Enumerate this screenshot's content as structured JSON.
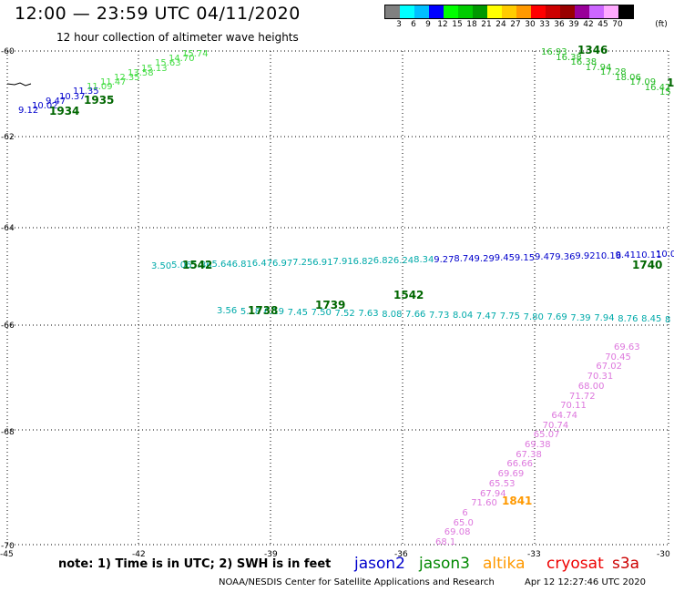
{
  "header": {
    "title": "12:00 — 23:59 UTC 04/11/2020",
    "subtitle": "12 hour collection of altimeter wave heights"
  },
  "legend": {
    "colors": [
      "#808080",
      "#00ffff",
      "#00bfff",
      "#0000ff",
      "#00ff00",
      "#00cc00",
      "#009900",
      "#ffff00",
      "#ffcc00",
      "#ff9900",
      "#ff0000",
      "#cc0000",
      "#990000",
      "#990099",
      "#cc66ff",
      "#ffaaff",
      "#000000"
    ],
    "labels": [
      "3",
      "6",
      "9",
      "12",
      "15",
      "18",
      "21",
      "24",
      "27",
      "30",
      "33",
      "36",
      "39",
      "42",
      "45",
      "70"
    ],
    "unit": "(ft)"
  },
  "axes": {
    "lat_labels": [
      "-60",
      "-62",
      "-64",
      "-66",
      "-68",
      "-70"
    ],
    "lon_labels": [
      "-45",
      "-42",
      "-39",
      "-36",
      "-33",
      "-30"
    ]
  },
  "tracks": {
    "upper_left": [
      "9.12",
      "10.02",
      "9.47",
      "10.37",
      "11.35",
      "11.09",
      "11.47",
      "12.35",
      "13.58",
      "15.13",
      "15.63",
      "14.70",
      "15.74"
    ],
    "upper_left_times": [
      "1934",
      "1935"
    ],
    "upper_right": [
      "16.93",
      "16.38",
      "16.38",
      "17.94",
      "17.28",
      "18.06",
      "17.09",
      "16.42",
      "15"
    ],
    "upper_right_times": [
      "1346",
      "1"
    ],
    "middle_upper": [
      "3.50",
      "5.06",
      "5.86",
      "5.64",
      "6.81",
      "6.47",
      "6.97",
      "7.25",
      "6.91",
      "7.91",
      "6.82",
      "6.82",
      "6.24",
      "8.34",
      "9.27",
      "8.74",
      "9.29",
      "9.45",
      "9.15",
      "9.47",
      "9.36",
      "9.92",
      "10.16",
      "9.41",
      "10.11",
      "10.0"
    ],
    "middle_upper_times": [
      "1542",
      "1542",
      "1740"
    ],
    "middle_lower": [
      "3.56",
      "5.18",
      "6.19",
      "7.45",
      "7.50",
      "7.52",
      "7.63",
      "8.08",
      "7.66",
      "7.73",
      "8.04",
      "7.47",
      "7.75",
      "7.80",
      "7.69",
      "7.39",
      "7.94",
      "8.76",
      "8.45",
      "8"
    ],
    "middle_lower_times": [
      "1738",
      "1739"
    ],
    "diagonal": [
      "69.63",
      "70.45",
      "67.02",
      "70.31",
      "68.00",
      "71.72",
      "70.11",
      "64.74",
      "70.74",
      "65.07",
      "69.38",
      "67.38",
      "66.66",
      "69.69",
      "65.53",
      "67.94",
      "71.60",
      "6",
      "65.0",
      "69.08",
      "68.1"
    ],
    "diagonal_time": "1841"
  },
  "footer": {
    "note": "note:  1) Time is in UTC;  2) SWH is in feet",
    "satellites": [
      {
        "name": "jason2",
        "color": "#0000cc"
      },
      {
        "name": "jason3",
        "color": "#008800"
      },
      {
        "name": "altika",
        "color": "#ff9900"
      },
      {
        "name": "cryosat",
        "color": "#ee0000"
      },
      {
        "name": "s3a",
        "color": "#cc0000"
      }
    ],
    "credit": "NOAA/NESDIS Center for Satellite Applications and Research",
    "timestamp": "Apr 12 12:27:46 UTC 2020"
  }
}
